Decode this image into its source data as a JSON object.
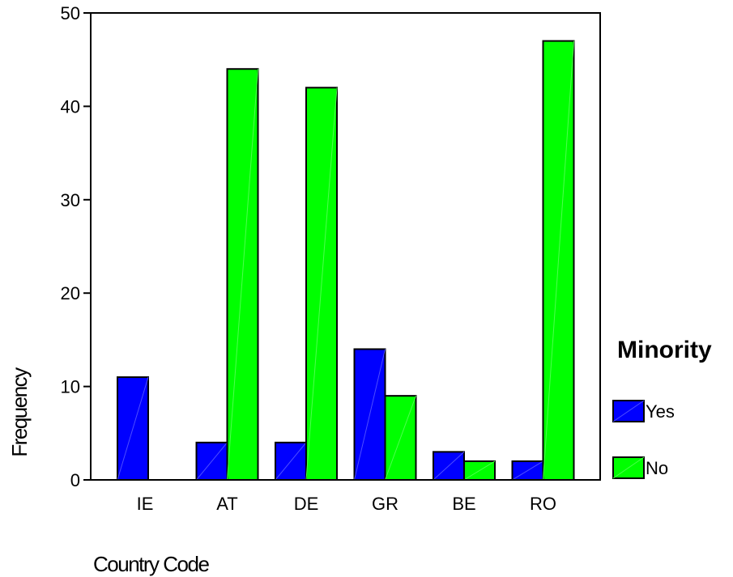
{
  "chart_data": {
    "type": "bar",
    "categories": [
      "IE",
      "AT",
      "DE",
      "GR",
      "BE",
      "RO"
    ],
    "series": [
      {
        "name": "Yes",
        "values": [
          11,
          4,
          4,
          14,
          3,
          2
        ],
        "color": "#0000ff"
      },
      {
        "name": "No",
        "values": [
          0,
          44,
          42,
          9,
          2,
          47
        ],
        "color": "#00ff00"
      }
    ],
    "xlabel": "Country Code",
    "ylabel": "Frequency",
    "ylim": [
      0,
      50
    ],
    "yticks": [
      0,
      10,
      20,
      30,
      40,
      50
    ],
    "legend": {
      "title": "Minority",
      "position": "right"
    },
    "grid": false
  }
}
